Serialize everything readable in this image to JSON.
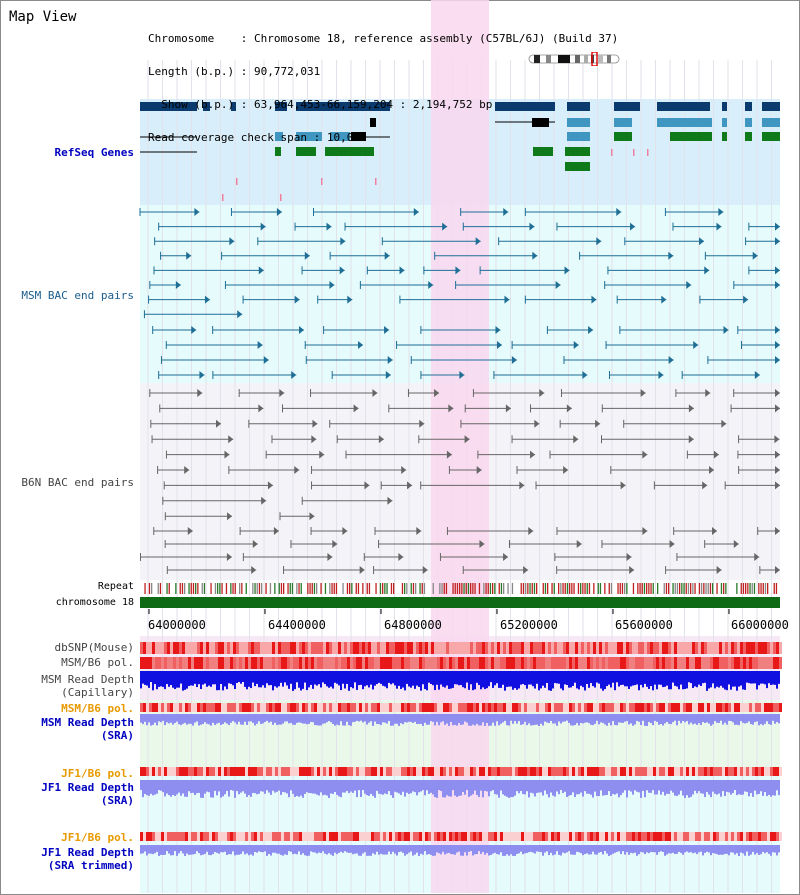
{
  "title": "Map View",
  "info": {
    "chromosome_label": "Chromosome",
    "chromosome_value": "Chromosome 18, reference assembly (C57BL/6J) (Build 37)",
    "length_label": "Length (b.p.)",
    "length_value": "90,772,031",
    "show_label": "Show (b.p.)",
    "show_value": "63,964,453-66,159,204 : 2,194,752 bp",
    "span_label": "Read coverage check span",
    "span_value": "10,000"
  },
  "tracks": {
    "refseq": "RefSeq Genes",
    "msm_bac": "MSM BAC end pairs",
    "b6n_bac": "B6N BAC end pairs",
    "repeat": "Repeat",
    "chromosome": "chromosome 18",
    "dbsnp": "dbSNP(Mouse)",
    "msm_b6_pol": "MSM/B6 pol.",
    "msm_depth_cap_1": "MSM Read Depth",
    "msm_depth_cap_2": "(Capillary)",
    "msm_b6_pol_sra": "MSM/B6 pol.",
    "msm_depth_sra_1": "MSM Read Depth",
    "msm_depth_sra_2": "(SRA)",
    "jf1_b6_pol": "JF1/B6 pol.",
    "jf1_depth_sra_1": "JF1 Read Depth",
    "jf1_depth_sra_2": "(SRA)",
    "jf1_b6_pol_trim": "JF1/B6 pol.",
    "jf1_depth_trim_1": "JF1 Read Depth",
    "jf1_depth_trim_2": "(SRA trimmed)"
  },
  "axis": {
    "ticks": [
      "64000000",
      "64400000",
      "64800000",
      "65200000",
      "65600000",
      "66000000"
    ]
  },
  "colors": {
    "highlight": "#f9d7ef",
    "refseq_bg": "#d8eefa",
    "msm_bg": "#e6fbfb",
    "b6n_bg": "#f4f4f8",
    "gene_dark": "#0a3a6e",
    "gene_mid": "#3f96c0",
    "gene_green": "#0f7a1a",
    "msm_line": "#1f6e96",
    "b6n_line": "#666666",
    "chromosome": "#0f6a16",
    "depth_blue": "#1010e0",
    "depth_light": "#8e8ef0"
  }
}
